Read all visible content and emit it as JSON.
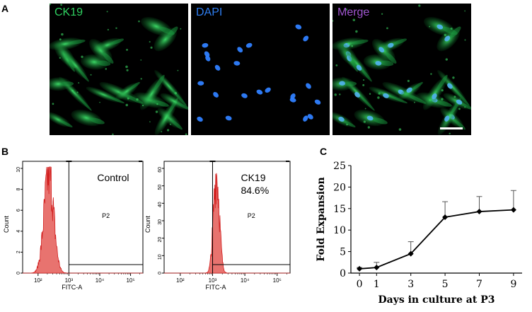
{
  "panels": {
    "A": {
      "letter": "A",
      "images": [
        {
          "label": "CK19",
          "label_color": "#2fd060",
          "channel": "green"
        },
        {
          "label": "DAPI",
          "label_color": "#2e7df0",
          "channel": "blue"
        },
        {
          "label": "Merge",
          "label_color": "#a055d0",
          "channel": "merge"
        }
      ],
      "scale_bar": true
    },
    "B": {
      "letter": "B",
      "histograms": [
        {
          "name": "Control",
          "annotation_lines": [
            "Control"
          ],
          "gate_label": "P2",
          "x_axis_label": "FITC-A",
          "y_axis_label": "Count",
          "y_ticks": [
            "0",
            "2",
            "4",
            "6",
            "8",
            "10"
          ],
          "x_ticks": [
            "10²",
            "10³",
            "10⁴",
            "10⁵"
          ]
        },
        {
          "name": "CK19",
          "annotation_lines": [
            "CK19",
            "84.6%"
          ],
          "gate_label": "P2",
          "x_axis_label": "FITC-A",
          "y_axis_label": "Count",
          "y_ticks": [
            "0",
            "10",
            "20",
            "30",
            "40",
            "50",
            "60"
          ],
          "x_ticks": [
            "10²",
            "10³",
            "10⁴",
            "10⁵"
          ]
        }
      ]
    },
    "C": {
      "letter": "C"
    }
  },
  "chart_data": {
    "type": "line",
    "title": "",
    "xlabel": "Days in culture at P3",
    "ylabel": "Fold Expansion",
    "x": [
      0,
      1,
      3,
      5,
      7,
      9
    ],
    "series": [
      {
        "values": [
          1.0,
          1.3,
          4.5,
          13.0,
          14.3,
          14.7
        ],
        "errors": [
          0.3,
          1.2,
          2.8,
          3.6,
          3.5,
          4.5
        ]
      }
    ],
    "xticks": [
      "0",
      "1",
      "3",
      "5",
      "7",
      "9"
    ],
    "yticks": [
      "0",
      "5",
      "10",
      "15",
      "20",
      "25"
    ],
    "ylim": [
      0,
      25
    ],
    "grid": false,
    "marker": "diamond",
    "line_color": "#000000"
  }
}
